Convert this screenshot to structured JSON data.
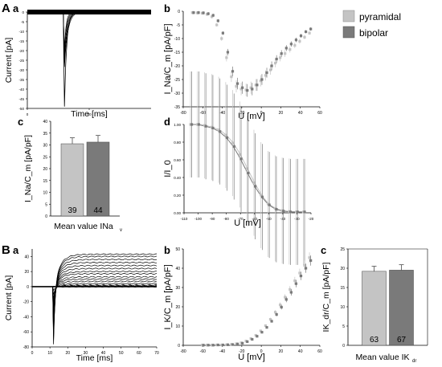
{
  "colors": {
    "pyramidal": "#c4c4c4",
    "bipolar": "#7a7a7a",
    "ink": "#000000"
  },
  "panel_labels": {
    "A": "A",
    "B": "B",
    "a": "a",
    "b": "b",
    "c": "c",
    "d": "d"
  },
  "legend": [
    {
      "label": "pyramidal",
      "color": "#c4c4c4"
    },
    {
      "label": "bipolar",
      "color": "#7a7a7a"
    }
  ],
  "chart_data": [
    {
      "id": "Aa",
      "type": "line",
      "xlabel": "Time [ms]",
      "ylabel": "Current [pA]",
      "xlim": [
        0,
        100
      ],
      "ylim": [
        -50,
        0
      ],
      "xticks": [
        0,
        50
      ],
      "yticks": [
        0,
        -5,
        -10,
        -15,
        -20,
        -25,
        -30,
        -35,
        -40,
        -45,
        -50
      ],
      "peak_current_pA": -49,
      "peak_time_ms": 30
    },
    {
      "id": "Ab",
      "type": "scatter",
      "xlabel": "U [mV]",
      "ylabel": "I_Na/C_m [pA/pF]",
      "xlim": [
        -80,
        60
      ],
      "ylim": [
        -35,
        0
      ],
      "xticks": [
        -80,
        -60,
        -40,
        -20,
        0,
        20,
        40,
        60
      ],
      "yticks": [
        0,
        -5,
        -10,
        -15,
        -20,
        -25,
        -30,
        -35
      ],
      "x": [
        -70,
        -65,
        -60,
        -55,
        -50,
        -45,
        -40,
        -35,
        -30,
        -25,
        -20,
        -15,
        -10,
        -5,
        0,
        5,
        10,
        15,
        20,
        25,
        30,
        35,
        40,
        45,
        50
      ],
      "series": [
        {
          "name": "pyramidal",
          "values": [
            -0.5,
            -0.6,
            -0.7,
            -1.1,
            -2.0,
            -5.0,
            -10.0,
            -17.0,
            -24.0,
            -27.5,
            -28.5,
            -28.8,
            -28.0,
            -27.0,
            -25.5,
            -23.5,
            -21.5,
            -19.0,
            -17.0,
            -15.5,
            -14.0,
            -12.5,
            -11.0,
            -9.5,
            -8.0
          ]
        },
        {
          "name": "bipolar",
          "values": [
            -0.5,
            -0.5,
            -0.6,
            -0.9,
            -1.5,
            -3.5,
            -8.0,
            -15.0,
            -22.0,
            -26.5,
            -28.0,
            -29.0,
            -28.5,
            -27.0,
            -25.0,
            -22.5,
            -20.0,
            -17.5,
            -15.5,
            -13.5,
            -12.0,
            -10.5,
            -9.0,
            -7.5,
            -6.5
          ]
        }
      ]
    },
    {
      "id": "Ac",
      "type": "bar",
      "xlabel": "Mean value INa",
      "xlabel_sub": "v",
      "ylabel": "I_Na/C_m [pA/pF]",
      "ylim": [
        0,
        40
      ],
      "yticks": [
        0,
        5,
        10,
        15,
        20,
        25,
        30,
        35,
        40
      ],
      "categories": [
        "pyramidal",
        "bipolar"
      ],
      "values": [
        30.5,
        31.2
      ],
      "errors": [
        2.5,
        2.8
      ],
      "n": [
        "39",
        "44"
      ]
    },
    {
      "id": "Ad",
      "type": "scatter",
      "xlabel": "U [mV]",
      "ylabel": "I/I_0",
      "xlim": [
        -110,
        -20
      ],
      "ylim": [
        0,
        1
      ],
      "xticks": [
        -110,
        -100,
        -90,
        -80,
        -70,
        -60,
        -50,
        -40,
        -30,
        -20
      ],
      "yticks": [
        0.0,
        0.2,
        0.4,
        0.6,
        0.8,
        1.0
      ],
      "xticklabels": [
        "-110",
        "-100",
        "-90",
        "-80",
        "-70",
        "-60",
        "-50",
        "-40",
        "-30",
        "-20"
      ],
      "yticklabels": [
        "0.00",
        "0.20",
        "0.40",
        "0.60",
        "0.80",
        "1.00"
      ],
      "x": [
        -105,
        -100,
        -95,
        -90,
        -85,
        -80,
        -75,
        -70,
        -65,
        -60,
        -55,
        -50,
        -45,
        -40,
        -35,
        -30,
        -25
      ],
      "series": [
        {
          "name": "pyramidal",
          "values": [
            1.0,
            1.0,
            0.99,
            0.97,
            0.94,
            0.88,
            0.79,
            0.66,
            0.5,
            0.34,
            0.2,
            0.1,
            0.05,
            0.025,
            0.015,
            0.01,
            0.01
          ]
        },
        {
          "name": "bipolar",
          "values": [
            1.0,
            1.0,
            0.98,
            0.96,
            0.92,
            0.85,
            0.75,
            0.61,
            0.45,
            0.3,
            0.18,
            0.09,
            0.04,
            0.02,
            0.01,
            0.01,
            0.01
          ]
        }
      ]
    },
    {
      "id": "Ba",
      "type": "line",
      "xlabel": "Time [ms]",
      "ylabel": "Current [pA]",
      "xlim": [
        0,
        70
      ],
      "ylim": [
        -80,
        50
      ],
      "xticks": [
        0,
        10,
        20,
        30,
        40,
        50,
        60,
        70
      ],
      "yticks": [
        40,
        20,
        0,
        -20,
        -40,
        -60,
        -80
      ],
      "step_onset_ms": 12,
      "step_end_ms": 70,
      "steady_currents_pA": [
        0,
        0,
        1,
        2,
        4,
        7,
        10,
        13,
        17,
        20,
        24,
        28,
        32,
        36,
        40,
        43
      ],
      "inward_peak_pA": -76
    },
    {
      "id": "Bb",
      "type": "scatter",
      "xlabel": "U [mV]",
      "ylabel": "I_K/C_m [pA/pF]",
      "xlim": [
        -80,
        60
      ],
      "ylim": [
        0,
        50
      ],
      "xticks": [
        -80,
        -60,
        -40,
        -20,
        0,
        20,
        40,
        60
      ],
      "yticks": [
        0,
        10,
        20,
        30,
        40,
        50
      ],
      "x": [
        -60,
        -55,
        -50,
        -45,
        -40,
        -35,
        -30,
        -25,
        -20,
        -15,
        -10,
        -5,
        0,
        5,
        10,
        15,
        20,
        25,
        30,
        35,
        40,
        45,
        50
      ],
      "series": [
        {
          "name": "pyramidal",
          "values": [
            0.1,
            0.1,
            0.1,
            0.2,
            0.2,
            0.3,
            0.5,
            0.8,
            1.3,
            2.2,
            3.5,
            5.2,
            7.5,
            10.2,
            13.5,
            17.2,
            21.0,
            25.0,
            29.0,
            33.5,
            37.5,
            41.5,
            45.5
          ]
        },
        {
          "name": "bipolar",
          "values": [
            0.1,
            0.1,
            0.1,
            0.2,
            0.2,
            0.3,
            0.4,
            0.7,
            1.1,
            1.9,
            3.1,
            4.7,
            6.8,
            9.3,
            12.5,
            16.0,
            19.8,
            23.8,
            27.5,
            32.0,
            36.0,
            40.0,
            44.0
          ]
        }
      ]
    },
    {
      "id": "Bc",
      "type": "bar",
      "xlabel": "Mean value IK",
      "xlabel_sub": "dr",
      "ylabel": "IK_dr/C_m [pA/pF]",
      "ylim": [
        0,
        25
      ],
      "yticks": [
        0,
        5,
        10,
        15,
        20,
        25
      ],
      "categories": [
        "pyramidal",
        "bipolar"
      ],
      "values": [
        19.2,
        19.5
      ],
      "errors": [
        1.3,
        1.4
      ],
      "n": [
        "63",
        "67"
      ]
    }
  ]
}
